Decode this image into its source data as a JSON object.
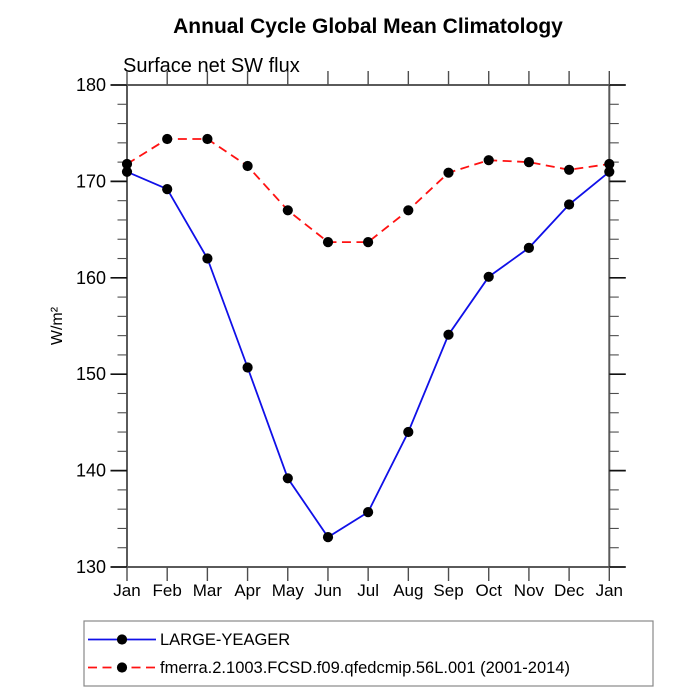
{
  "title": "Annual Cycle Global Mean Climatology",
  "subtitle": "Surface net SW flux",
  "ylabel": "W/m²",
  "colors": {
    "axis": "#5a5a5a",
    "major_tick": "#111111",
    "minor_tick": "#4d4d4d",
    "marker": "#000000",
    "legend_border": "#888888",
    "text": "#000000",
    "background": "#ffffff"
  },
  "chart_data": {
    "type": "line",
    "title": "Annual Cycle Global Mean Climatology",
    "subtitle": "Surface net SW flux",
    "xlabel": "",
    "ylabel": "W/m²",
    "x_categories": [
      "Jan",
      "Feb",
      "Mar",
      "Apr",
      "May",
      "Jun",
      "Jul",
      "Aug",
      "Sep",
      "Oct",
      "Nov",
      "Dec",
      "Jan"
    ],
    "ylim": [
      130,
      180
    ],
    "y_major_ticks": [
      130,
      140,
      150,
      160,
      170,
      180
    ],
    "y_minor_step": 2,
    "grid": false,
    "legend_position": "bottom",
    "series": [
      {
        "name": "LARGE-YEAGER",
        "color": "#1010e8",
        "line_style": "solid",
        "marker": "filled-circle",
        "values": [
          171.0,
          169.2,
          162.0,
          150.7,
          139.2,
          133.1,
          135.7,
          144.0,
          154.1,
          160.1,
          163.1,
          167.6,
          171.0
        ]
      },
      {
        "name": "fmerra.2.1003.FCSD.f09.qfedcmip.56L.001 (2001-2014)",
        "color": "#ff1212",
        "line_style": "dashed",
        "marker": "filled-circle",
        "values": [
          171.8,
          174.4,
          174.4,
          171.6,
          167.0,
          163.7,
          163.7,
          167.0,
          170.9,
          172.2,
          172.0,
          171.2,
          171.8
        ]
      }
    ]
  }
}
